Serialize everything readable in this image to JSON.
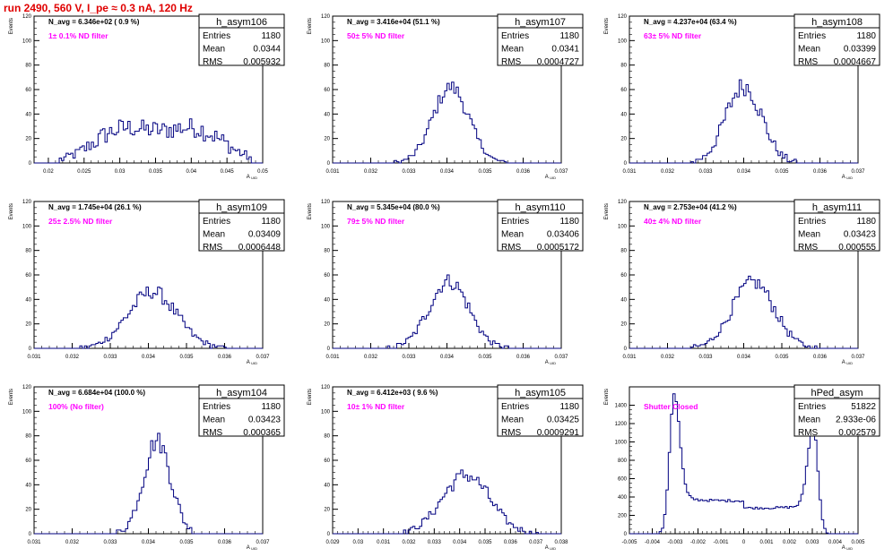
{
  "title": "run 2490,   560 V, I_pe ≈ 0.3 nA, 120 Hz",
  "stat_labels": [
    "Entries",
    "Mean",
    "RMS"
  ],
  "ylabel": "Events",
  "xlabel": "A",
  "xlabel_sub": "UID",
  "colors": {
    "hist": "#000080",
    "annotation": "#ff00ff",
    "title": "#e00000",
    "frame": "#000000"
  },
  "chart_data": [
    {
      "type": "histogram",
      "name": "h_asym106",
      "navg": "N_avg = 6.346e+02 ( 0.9 %)",
      "note": "1± 0.1% ND filter",
      "entries": "1180",
      "mean": "0.0344",
      "rms": "0.005932",
      "xlim": [
        0.018,
        0.05
      ],
      "ylim": [
        0,
        120
      ],
      "xticks": [
        "0.02",
        "0.025",
        "0.03",
        "0.035",
        "0.04",
        "0.045",
        "0.05"
      ],
      "yticks": [
        "0",
        "20",
        "40",
        "60",
        "80",
        "100",
        "120"
      ],
      "dist": {
        "kind": "bimodal",
        "mus": [
          0.0305,
          0.0405
        ],
        "sigma": 0.0042,
        "peaks": [
          27,
          27
        ],
        "noise": 8
      }
    },
    {
      "type": "histogram",
      "name": "h_asym107",
      "navg": "N_avg = 3.416e+04 (51.1 %)",
      "note": "50± 5% ND filter",
      "entries": "1180",
      "mean": "0.0341",
      "rms": "0.0004727",
      "xlim": [
        0.031,
        0.037
      ],
      "ylim": [
        0,
        120
      ],
      "xticks": [
        "0.031",
        "0.032",
        "0.033",
        "0.034",
        "0.035",
        "0.036",
        "0.037"
      ],
      "yticks": [
        "0",
        "20",
        "40",
        "60",
        "80",
        "100",
        "120"
      ],
      "dist": {
        "kind": "gauss",
        "mu": 0.0341,
        "sigma": 0.00047,
        "peak": 62,
        "noise": 6
      }
    },
    {
      "type": "histogram",
      "name": "h_asym108",
      "navg": "N_avg = 4.237e+04 (63.4 %)",
      "note": "63± 5% ND filter",
      "entries": "1180",
      "mean": "0.03399",
      "rms": "0.0004667",
      "xlim": [
        0.031,
        0.037
      ],
      "ylim": [
        0,
        120
      ],
      "xticks": [
        "0.031",
        "0.032",
        "0.033",
        "0.034",
        "0.035",
        "0.036",
        "0.037"
      ],
      "yticks": [
        "0",
        "20",
        "40",
        "60",
        "80",
        "100",
        "120"
      ],
      "dist": {
        "kind": "gauss",
        "mu": 0.034,
        "sigma": 0.00047,
        "peak": 63,
        "noise": 8
      }
    },
    {
      "type": "histogram",
      "name": "h_asym109",
      "navg": "N_avg = 1.745e+04 (26.1 %)",
      "note": "25± 2.5% ND filter",
      "entries": "1180",
      "mean": "0.03409",
      "rms": "0.0006448",
      "xlim": [
        0.031,
        0.037
      ],
      "ylim": [
        0,
        120
      ],
      "xticks": [
        "0.031",
        "0.032",
        "0.033",
        "0.034",
        "0.035",
        "0.036",
        "0.037"
      ],
      "yticks": [
        "0",
        "20",
        "40",
        "60",
        "80",
        "100",
        "120"
      ],
      "dist": {
        "kind": "gauss",
        "mu": 0.0341,
        "sigma": 0.00064,
        "peak": 46,
        "noise": 6
      }
    },
    {
      "type": "histogram",
      "name": "h_asym110",
      "navg": "N_avg = 5.345e+04 (80.0 %)",
      "note": "79± 5% ND filter",
      "entries": "1180",
      "mean": "0.03406",
      "rms": "0.0005172",
      "xlim": [
        0.031,
        0.037
      ],
      "ylim": [
        0,
        120
      ],
      "xticks": [
        "0.031",
        "0.032",
        "0.033",
        "0.034",
        "0.035",
        "0.036",
        "0.037"
      ],
      "yticks": [
        "0",
        "20",
        "40",
        "60",
        "80",
        "100",
        "120"
      ],
      "dist": {
        "kind": "gauss",
        "mu": 0.03405,
        "sigma": 0.00052,
        "peak": 55,
        "noise": 6
      }
    },
    {
      "type": "histogram",
      "name": "h_asym111",
      "navg": "N_avg = 2.753e+04 (41.2 %)",
      "note": "40± 4% ND filter",
      "entries": "1180",
      "mean": "0.03423",
      "rms": "0.000555",
      "xlim": [
        0.031,
        0.037
      ],
      "ylim": [
        0,
        120
      ],
      "xticks": [
        "0.031",
        "0.032",
        "0.033",
        "0.034",
        "0.035",
        "0.036",
        "0.037"
      ],
      "yticks": [
        "0",
        "20",
        "40",
        "60",
        "80",
        "100",
        "120"
      ],
      "dist": {
        "kind": "gauss",
        "mu": 0.03425,
        "sigma": 0.00055,
        "peak": 54,
        "noise": 6
      }
    },
    {
      "type": "histogram",
      "name": "h_asym104",
      "navg": "N_avg = 6.684e+04 (100.0 %)",
      "note": "100% (No filter)",
      "entries": "1180",
      "mean": "0.03423",
      "rms": "0.000365",
      "xlim": [
        0.031,
        0.037
      ],
      "ylim": [
        0,
        120
      ],
      "xticks": [
        "0.031",
        "0.032",
        "0.033",
        "0.034",
        "0.035",
        "0.036",
        "0.037"
      ],
      "yticks": [
        "0",
        "20",
        "40",
        "60",
        "80",
        "100",
        "120"
      ],
      "dist": {
        "kind": "gauss",
        "mu": 0.03423,
        "sigma": 0.00036,
        "peak": 76,
        "noise": 8
      }
    },
    {
      "type": "histogram",
      "name": "h_asym105",
      "navg": "N_avg = 6.412e+03 ( 9.6 %)",
      "note": "10± 1% ND filter",
      "entries": "1180",
      "mean": "0.03425",
      "rms": "0.0009291",
      "xlim": [
        0.029,
        0.038
      ],
      "ylim": [
        0,
        120
      ],
      "xticks": [
        "0.029",
        "0.03",
        "0.031",
        "0.032",
        "0.033",
        "0.034",
        "0.035",
        "0.036",
        "0.037",
        "0.038"
      ],
      "yticks": [
        "0",
        "20",
        "40",
        "60",
        "80",
        "100",
        "120"
      ],
      "dist": {
        "kind": "gauss",
        "mu": 0.03425,
        "sigma": 0.00093,
        "peak": 48,
        "noise": 6
      }
    },
    {
      "type": "histogram",
      "name": "hPed_asym",
      "navg": "",
      "note": "Shutter Closed",
      "entries": "51822",
      "mean": "2.933e-06",
      "rms": "0.002579",
      "xlim": [
        -0.005,
        0.005
      ],
      "ylim": [
        0,
        1600
      ],
      "xticks": [
        "-0.005",
        "-0.004",
        "-0.003",
        "-0.002",
        "-0.001",
        "0",
        "0.001",
        "0.002",
        "0.003",
        "0.004",
        "0.005"
      ],
      "yticks": [
        "0",
        "200",
        "400",
        "600",
        "800",
        "1000",
        "1200",
        "1400"
      ],
      "dist": {
        "kind": "pedestal",
        "edge": 0.00305,
        "peak": 1480,
        "floor": 360,
        "sigma": 0.0002,
        "noise": 25
      }
    }
  ]
}
